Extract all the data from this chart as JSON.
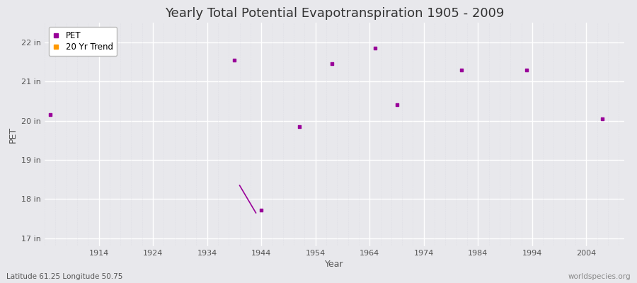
{
  "title": "Yearly Total Potential Evapotranspiration 1905 - 2009",
  "xlabel": "Year",
  "ylabel": "PET",
  "xlim": [
    1904,
    2011
  ],
  "ylim": [
    16.8,
    22.5
  ],
  "yticks": [
    17,
    18,
    19,
    20,
    21,
    22
  ],
  "ytick_labels": [
    "17 in",
    "18 in",
    "19 in",
    "20 in",
    "21 in",
    "22 in"
  ],
  "xticks": [
    1914,
    1924,
    1934,
    1944,
    1954,
    1964,
    1974,
    1984,
    1994,
    2004
  ],
  "background_color": "#e8e8ec",
  "plot_bg_color": "#e8e8ec",
  "grid_major_color": "#ffffff",
  "grid_minor_color": "#d8d8e0",
  "pet_color": "#990099",
  "trend_color": "#ff9900",
  "pet_points": [
    [
      1905,
      20.15
    ],
    [
      1939,
      21.55
    ],
    [
      1944,
      17.72
    ],
    [
      1951,
      19.85
    ],
    [
      1957,
      21.45
    ],
    [
      1965,
      21.85
    ],
    [
      1969,
      20.4
    ],
    [
      1981,
      21.3
    ],
    [
      1993,
      21.3
    ],
    [
      2007,
      20.05
    ]
  ],
  "trend_line": [
    [
      1940,
      18.35
    ],
    [
      1943,
      17.65
    ]
  ],
  "footer_left": "Latitude 61.25 Longitude 50.75",
  "footer_right": "worldspecies.org",
  "title_fontsize": 13,
  "axis_label_fontsize": 9,
  "tick_fontsize": 8,
  "footer_fontsize": 7.5
}
